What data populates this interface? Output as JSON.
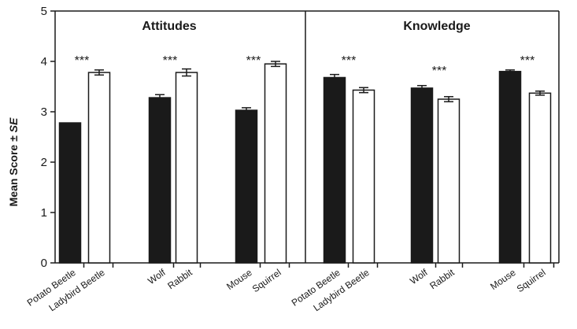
{
  "chart_data": {
    "type": "bar",
    "ylabel_main": "Mean Score ± ",
    "ylabel_italic": "SE",
    "ylim": [
      0,
      5
    ],
    "yticks": [
      "0",
      "1",
      "2",
      "3",
      "4",
      "5"
    ],
    "grid": false,
    "significance_label": "***",
    "panels": [
      {
        "title": "Attitudes",
        "groups": [
          {
            "significance": "***",
            "bars": [
              {
                "label": "Potato Beetle",
                "value": 2.78,
                "se": 0.0,
                "fill": "solid"
              },
              {
                "label": "Ladybird Beetle",
                "value": 3.78,
                "se": 0.05,
                "fill": "open"
              }
            ]
          },
          {
            "significance": "***",
            "bars": [
              {
                "label": "Wolf",
                "value": 3.28,
                "se": 0.06,
                "fill": "solid"
              },
              {
                "label": "Rabbit",
                "value": 3.78,
                "se": 0.07,
                "fill": "open"
              }
            ]
          },
          {
            "significance": "***",
            "bars": [
              {
                "label": "Mouse",
                "value": 3.03,
                "se": 0.05,
                "fill": "solid"
              },
              {
                "label": "Squirrel",
                "value": 3.95,
                "se": 0.05,
                "fill": "open"
              }
            ]
          }
        ]
      },
      {
        "title": "Knowledge",
        "groups": [
          {
            "significance": "***",
            "bars": [
              {
                "label": "Potato Beetle",
                "value": 3.68,
                "se": 0.06,
                "fill": "solid"
              },
              {
                "label": "Ladybird Beetle",
                "value": 3.43,
                "se": 0.05,
                "fill": "open"
              }
            ]
          },
          {
            "significance": "***",
            "bars": [
              {
                "label": "Wolf",
                "value": 3.47,
                "se": 0.05,
                "fill": "solid"
              },
              {
                "label": "Rabbit",
                "value": 3.25,
                "se": 0.05,
                "fill": "open"
              }
            ]
          },
          {
            "significance": "***",
            "bars": [
              {
                "label": "Mouse",
                "value": 3.8,
                "se": 0.03,
                "fill": "solid"
              },
              {
                "label": "Squirrel",
                "value": 3.37,
                "se": 0.04,
                "fill": "open"
              }
            ]
          }
        ]
      }
    ],
    "colors": {
      "solid": "#1a1a1a",
      "open": "#ffffff",
      "stroke": "#1a1a1a"
    }
  }
}
